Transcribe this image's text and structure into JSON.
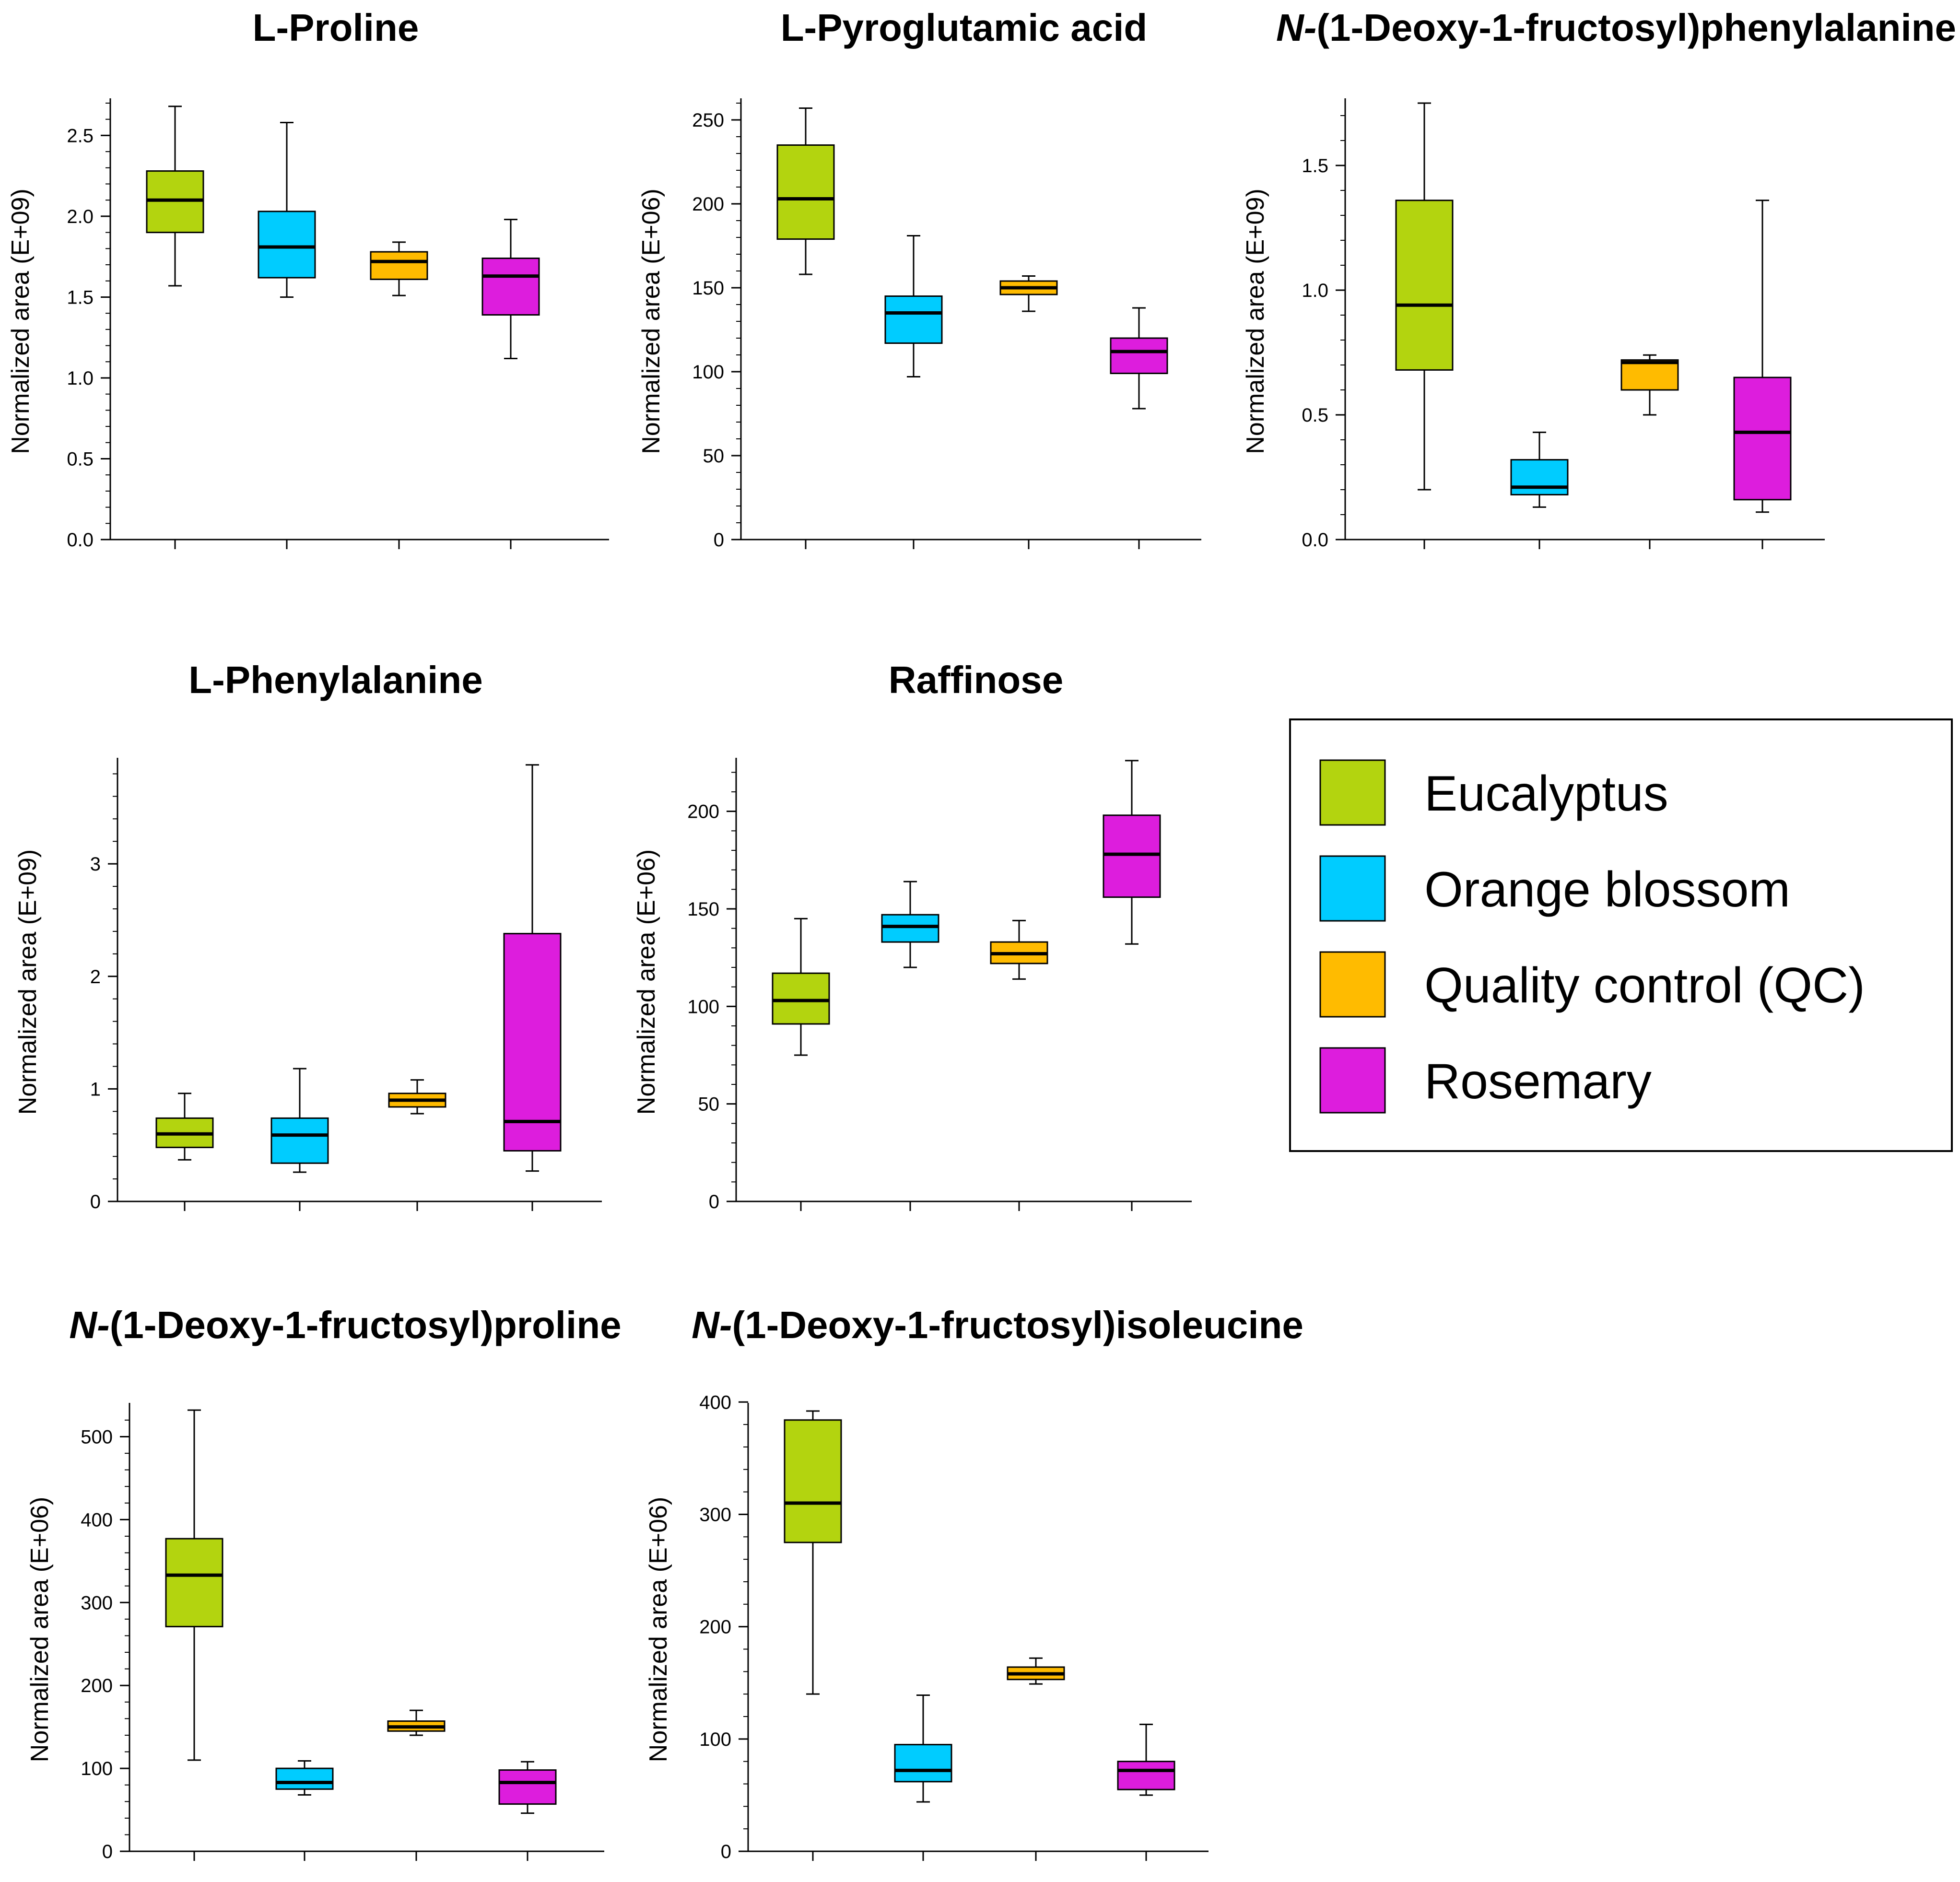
{
  "legend": {
    "entries": [
      {
        "label": "Eucalyptus",
        "color": "#b3d40f"
      },
      {
        "label": "Orange blossom",
        "color": "#00ccff"
      },
      {
        "label": "Quality control (QC)",
        "color": "#ffbb00"
      },
      {
        "label": "Rosemary",
        "color": "#dd1ddd"
      }
    ]
  },
  "chart_data": [
    {
      "type": "box",
      "title": "L-Proline",
      "title_italic_prefix": "",
      "ylabel": "Normalized area (E+09)",
      "ylim": [
        0,
        2.7
      ],
      "yticks": [
        "0.0",
        "0.5",
        "1.0",
        "1.5",
        "2.0",
        "2.5"
      ],
      "ytick_values": [
        0,
        0.5,
        1.0,
        1.5,
        2.0,
        2.5
      ],
      "boxes": [
        {
          "group": "Eucalyptus",
          "min": 1.57,
          "q1": 1.9,
          "median": 2.1,
          "q3": 2.28,
          "max": 2.68
        },
        {
          "group": "Orange blossom",
          "min": 1.5,
          "q1": 1.62,
          "median": 1.81,
          "q3": 2.03,
          "max": 2.58
        },
        {
          "group": "Quality control (QC)",
          "min": 1.51,
          "q1": 1.61,
          "median": 1.72,
          "q3": 1.78,
          "max": 1.84
        },
        {
          "group": "Rosemary",
          "min": 1.12,
          "q1": 1.39,
          "median": 1.63,
          "q3": 1.74,
          "max": 1.98
        }
      ]
    },
    {
      "type": "box",
      "title": "L-Pyroglutamic acid",
      "title_italic_prefix": "",
      "ylabel": "Normalized area (E+06)",
      "ylim": [
        0,
        260
      ],
      "yticks": [
        "0",
        "50",
        "100",
        "150",
        "200",
        "250"
      ],
      "ytick_values": [
        0,
        50,
        100,
        150,
        200,
        250
      ],
      "boxes": [
        {
          "group": "Eucalyptus",
          "min": 158,
          "q1": 179,
          "median": 203,
          "q3": 235,
          "max": 257
        },
        {
          "group": "Orange blossom",
          "min": 97,
          "q1": 117,
          "median": 135,
          "q3": 145,
          "max": 181
        },
        {
          "group": "Quality control (QC)",
          "min": 136,
          "q1": 146,
          "median": 150,
          "q3": 154,
          "max": 157
        },
        {
          "group": "Rosemary",
          "min": 78,
          "q1": 99,
          "median": 112,
          "q3": 120,
          "max": 138
        }
      ]
    },
    {
      "type": "box",
      "title": "(1-Deoxy-1-fructosyl)phenylalanine",
      "title_italic_prefix": "N-",
      "ylabel": "Normalized area (E+09)",
      "ylim": [
        0,
        1.75
      ],
      "yticks": [
        "0.0",
        "0.5",
        "1.0",
        "1.5"
      ],
      "ytick_values": [
        0,
        0.5,
        1.0,
        1.5
      ],
      "boxes": [
        {
          "group": "Eucalyptus",
          "min": 0.2,
          "q1": 0.68,
          "median": 0.94,
          "q3": 1.36,
          "max": 1.75
        },
        {
          "group": "Orange blossom",
          "min": 0.13,
          "q1": 0.18,
          "median": 0.21,
          "q3": 0.32,
          "max": 0.43
        },
        {
          "group": "Quality control (QC)",
          "min": 0.5,
          "q1": 0.6,
          "median": 0.71,
          "q3": 0.72,
          "max": 0.74
        },
        {
          "group": "Rosemary",
          "min": 0.11,
          "q1": 0.16,
          "median": 0.43,
          "q3": 0.65,
          "max": 1.36
        }
      ]
    },
    {
      "type": "box",
      "title": "L-Phenylalanine",
      "title_italic_prefix": "",
      "ylabel": "Normalized area (E+09)",
      "ylim": [
        0,
        3.9
      ],
      "yticks": [
        "0",
        "1",
        "2",
        "3"
      ],
      "ytick_values": [
        0,
        1,
        2,
        3
      ],
      "boxes": [
        {
          "group": "Eucalyptus",
          "min": 0.37,
          "q1": 0.48,
          "median": 0.6,
          "q3": 0.74,
          "max": 0.96
        },
        {
          "group": "Orange blossom",
          "min": 0.26,
          "q1": 0.34,
          "median": 0.59,
          "q3": 0.74,
          "max": 1.18
        },
        {
          "group": "Quality control (QC)",
          "min": 0.78,
          "q1": 0.84,
          "median": 0.9,
          "q3": 0.96,
          "max": 1.08
        },
        {
          "group": "Rosemary",
          "min": 0.27,
          "q1": 0.45,
          "median": 0.71,
          "q3": 2.38,
          "max": 3.88
        }
      ]
    },
    {
      "type": "box",
      "title": "Raffinose",
      "title_italic_prefix": "",
      "ylabel": "Normalized area (E+06)",
      "ylim": [
        0,
        225
      ],
      "yticks": [
        "0",
        "50",
        "100",
        "150",
        "200"
      ],
      "ytick_values": [
        0,
        50,
        100,
        150,
        200
      ],
      "boxes": [
        {
          "group": "Eucalyptus",
          "min": 75,
          "q1": 91,
          "median": 103,
          "q3": 117,
          "max": 145
        },
        {
          "group": "Orange blossom",
          "min": 120,
          "q1": 133,
          "median": 141,
          "q3": 147,
          "max": 164
        },
        {
          "group": "Quality control (QC)",
          "min": 114,
          "q1": 122,
          "median": 127,
          "q3": 133,
          "max": 144
        },
        {
          "group": "Rosemary",
          "min": 132,
          "q1": 156,
          "median": 178,
          "q3": 198,
          "max": 226
        }
      ]
    },
    {
      "type": "box",
      "title": "(1-Deoxy-1-fructosyl)proline",
      "title_italic_prefix": "N-",
      "ylabel": "Normalized area (E+06)",
      "ylim": [
        0,
        535
      ],
      "yticks": [
        "0",
        "100",
        "200",
        "300",
        "400",
        "500"
      ],
      "ytick_values": [
        0,
        100,
        200,
        300,
        400,
        500
      ],
      "boxes": [
        {
          "group": "Eucalyptus",
          "min": 110,
          "q1": 271,
          "median": 333,
          "q3": 377,
          "max": 532
        },
        {
          "group": "Orange blossom",
          "min": 68,
          "q1": 75,
          "median": 83,
          "q3": 100,
          "max": 109
        },
        {
          "group": "Quality control (QC)",
          "min": 140,
          "q1": 145,
          "median": 150,
          "q3": 157,
          "max": 170
        },
        {
          "group": "Rosemary",
          "min": 46,
          "q1": 57,
          "median": 83,
          "q3": 98,
          "max": 108
        }
      ]
    },
    {
      "type": "box",
      "title": "(1-Deoxy-1-fructosyl)isoleucine",
      "title_italic_prefix": "N-",
      "ylabel": "Normalized area (E+06)",
      "ylim": [
        0,
        395
      ],
      "yticks": [
        "0",
        "100",
        "200",
        "300",
        "400"
      ],
      "ytick_values": [
        0,
        100,
        200,
        300,
        400
      ],
      "boxes": [
        {
          "group": "Eucalyptus",
          "min": 140,
          "q1": 275,
          "median": 310,
          "q3": 384,
          "max": 392
        },
        {
          "group": "Orange blossom",
          "min": 44,
          "q1": 62,
          "median": 72,
          "q3": 95,
          "max": 139
        },
        {
          "group": "Quality control (QC)",
          "min": 149,
          "q1": 153,
          "median": 158,
          "q3": 164,
          "max": 172
        },
        {
          "group": "Rosemary",
          "min": 50,
          "q1": 55,
          "median": 72,
          "q3": 80,
          "max": 113
        }
      ]
    }
  ]
}
